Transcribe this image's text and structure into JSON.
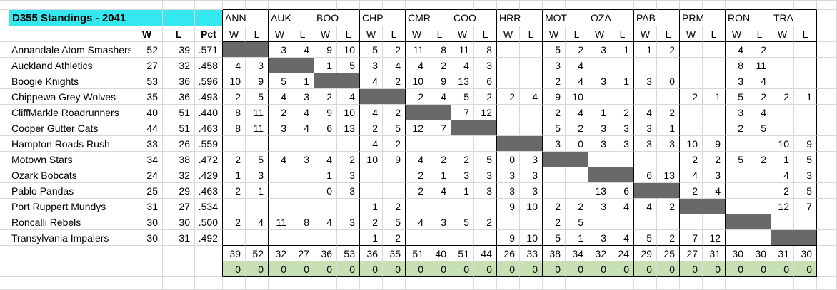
{
  "title": "D355 Standings - 2041",
  "left_headers": {
    "wins": "W",
    "losses": "L",
    "pct": "Pct"
  },
  "matrix_subheaders": {
    "wins": "W",
    "losses": "L"
  },
  "opponents": [
    "ANN",
    "AUK",
    "BOO",
    "CHP",
    "CMR",
    "COO",
    "HRR",
    "MOT",
    "OZA",
    "PAB",
    "PRM",
    "RON",
    "TRA"
  ],
  "teams": [
    {
      "name": "Annandale Atom Smashers",
      "w": "52",
      "l": "39",
      "pct": ".571",
      "vs": [
        null,
        [
          3,
          4
        ],
        [
          9,
          10
        ],
        [
          5,
          2
        ],
        [
          11,
          8
        ],
        [
          11,
          8
        ],
        null,
        [
          5,
          2
        ],
        [
          3,
          1
        ],
        [
          1,
          2
        ],
        null,
        [
          4,
          2
        ],
        null
      ]
    },
    {
      "name": "Auckland Athletics",
      "w": "27",
      "l": "32",
      "pct": ".458",
      "vs": [
        [
          4,
          3
        ],
        null,
        [
          1,
          5
        ],
        [
          3,
          4
        ],
        [
          4,
          2
        ],
        [
          4,
          3
        ],
        null,
        [
          3,
          4
        ],
        null,
        null,
        null,
        [
          8,
          11
        ],
        null
      ]
    },
    {
      "name": "Boogie Knights",
      "w": "53",
      "l": "36",
      "pct": ".596",
      "vs": [
        [
          10,
          9
        ],
        [
          5,
          1
        ],
        null,
        [
          4,
          2
        ],
        [
          10,
          9
        ],
        [
          13,
          6
        ],
        null,
        [
          2,
          4
        ],
        [
          3,
          1
        ],
        [
          3,
          0
        ],
        null,
        [
          3,
          4
        ],
        null
      ]
    },
    {
      "name": "Chippewa Grey Wolves",
      "w": "35",
      "l": "36",
      "pct": ".493",
      "vs": [
        [
          2,
          5
        ],
        [
          4,
          3
        ],
        [
          2,
          4
        ],
        null,
        [
          2,
          4
        ],
        [
          5,
          2
        ],
        [
          2,
          4
        ],
        [
          9,
          10
        ],
        null,
        null,
        [
          2,
          1
        ],
        [
          5,
          2
        ],
        [
          2,
          1
        ]
      ]
    },
    {
      "name": "CliffMarkle Roadrunners",
      "w": "40",
      "l": "51",
      "pct": ".440",
      "vs": [
        [
          8,
          11
        ],
        [
          2,
          4
        ],
        [
          9,
          10
        ],
        [
          4,
          2
        ],
        null,
        [
          7,
          12
        ],
        null,
        [
          2,
          4
        ],
        [
          1,
          2
        ],
        [
          4,
          2
        ],
        null,
        [
          3,
          4
        ],
        null
      ]
    },
    {
      "name": "Cooper Gutter Cats",
      "w": "44",
      "l": "51",
      "pct": ".463",
      "vs": [
        [
          8,
          11
        ],
        [
          3,
          4
        ],
        [
          6,
          13
        ],
        [
          2,
          5
        ],
        [
          12,
          7
        ],
        null,
        null,
        [
          5,
          2
        ],
        [
          3,
          3
        ],
        [
          3,
          1
        ],
        null,
        [
          2,
          5
        ],
        null
      ]
    },
    {
      "name": "Hampton Roads Rush",
      "w": "33",
      "l": "26",
      "pct": ".559",
      "vs": [
        null,
        null,
        null,
        [
          4,
          2
        ],
        null,
        null,
        null,
        [
          3,
          0
        ],
        [
          3,
          3
        ],
        [
          3,
          3
        ],
        [
          10,
          9
        ],
        null,
        [
          10,
          9
        ]
      ]
    },
    {
      "name": "Motown Stars",
      "w": "34",
      "l": "38",
      "pct": ".472",
      "vs": [
        [
          2,
          5
        ],
        [
          4,
          3
        ],
        [
          4,
          2
        ],
        [
          10,
          9
        ],
        [
          4,
          2
        ],
        [
          2,
          5
        ],
        [
          0,
          3
        ],
        null,
        null,
        null,
        [
          2,
          2
        ],
        [
          5,
          2
        ],
        [
          1,
          5
        ]
      ]
    },
    {
      "name": "Ozark Bobcats",
      "w": "24",
      "l": "32",
      "pct": ".429",
      "vs": [
        [
          1,
          3
        ],
        null,
        [
          1,
          3
        ],
        null,
        [
          2,
          1
        ],
        [
          3,
          3
        ],
        [
          3,
          3
        ],
        null,
        null,
        [
          6,
          13
        ],
        [
          4,
          3
        ],
        null,
        [
          4,
          3
        ]
      ]
    },
    {
      "name": "Pablo Pandas",
      "w": "25",
      "l": "29",
      "pct": ".463",
      "vs": [
        [
          2,
          1
        ],
        null,
        [
          0,
          3
        ],
        null,
        [
          2,
          4
        ],
        [
          1,
          3
        ],
        [
          3,
          3
        ],
        null,
        [
          13,
          6
        ],
        null,
        [
          2,
          4
        ],
        null,
        [
          2,
          5
        ]
      ]
    },
    {
      "name": "Port Ruppert Mundys",
      "w": "31",
      "l": "27",
      "pct": ".534",
      "vs": [
        null,
        null,
        null,
        [
          1,
          2
        ],
        null,
        null,
        [
          9,
          10
        ],
        [
          2,
          2
        ],
        [
          3,
          4
        ],
        [
          4,
          2
        ],
        null,
        null,
        [
          12,
          7
        ]
      ]
    },
    {
      "name": "Roncalli Rebels",
      "w": "30",
      "l": "30",
      "pct": ".500",
      "vs": [
        [
          2,
          4
        ],
        [
          11,
          8
        ],
        [
          4,
          3
        ],
        [
          2,
          5
        ],
        [
          4,
          3
        ],
        [
          5,
          2
        ],
        null,
        [
          2,
          5
        ],
        null,
        null,
        null,
        null,
        null
      ]
    },
    {
      "name": "Transylvania Impalers",
      "w": "30",
      "l": "31",
      "pct": ".492",
      "vs": [
        null,
        null,
        null,
        [
          1,
          2
        ],
        null,
        null,
        [
          9,
          10
        ],
        [
          5,
          1
        ],
        [
          3,
          4
        ],
        [
          5,
          2
        ],
        [
          7,
          12
        ],
        null,
        null
      ]
    }
  ],
  "totals_row": [
    [
      39,
      52
    ],
    [
      32,
      27
    ],
    [
      36,
      53
    ],
    [
      36,
      35
    ],
    [
      51,
      40
    ],
    [
      51,
      44
    ],
    [
      26,
      33
    ],
    [
      38,
      34
    ],
    [
      32,
      24
    ],
    [
      29,
      25
    ],
    [
      27,
      31
    ],
    [
      30,
      30
    ],
    [
      31,
      30
    ]
  ],
  "zeros_row_value": "0",
  "colors": {
    "title_bg": "#35e7ee",
    "diagonal_bg": "#696969",
    "zeros_bg": "#c6e0b4",
    "gridline": "#d8d8d8",
    "border": "#000000"
  }
}
